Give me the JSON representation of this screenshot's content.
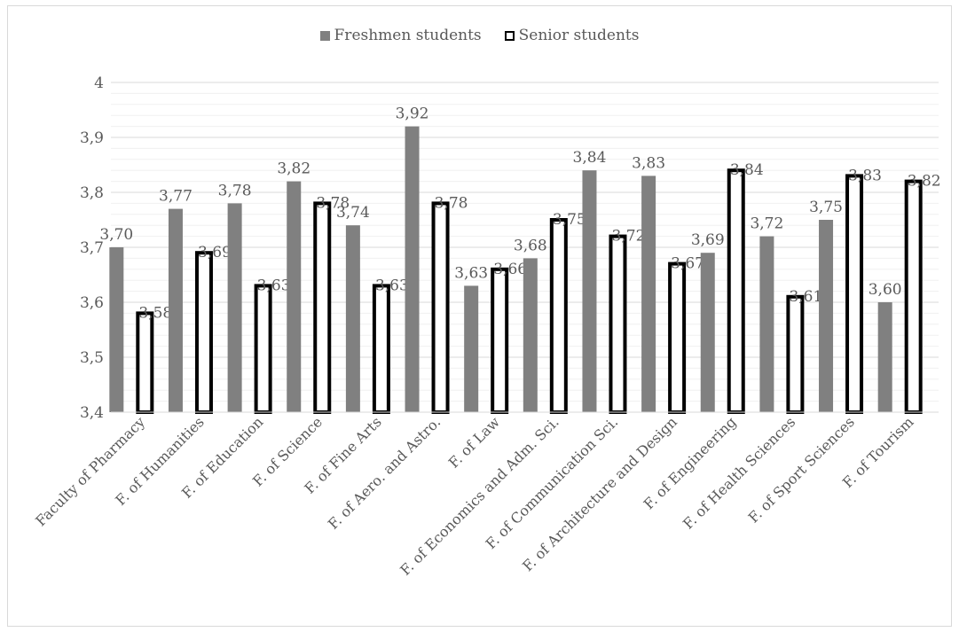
{
  "chart_data": {
    "type": "bar",
    "categories": [
      "Faculty of Pharmacy",
      "F. of Humanities",
      "F. of Education",
      "F. of Science",
      "F. of Fine Arts",
      "F. of Aero. and Astro.",
      "F. of Law",
      "F. of Economics and Adm. Sci.",
      "F. of Communication Sci.",
      "F. of Architecture and Design",
      "F. of Engineering",
      "F. of Health Sciences",
      "F. of Sport Sciences",
      "F. of Tourism"
    ],
    "series": [
      {
        "name": "Freshmen students",
        "color": "#808080",
        "values": [
          3.7,
          3.77,
          3.78,
          3.82,
          3.74,
          3.92,
          3.63,
          3.68,
          3.84,
          3.83,
          3.69,
          3.72,
          3.75,
          3.6
        ],
        "labels": [
          "3,70",
          "3,77",
          "3,78",
          "3,82",
          "3,74",
          "3,92",
          "3,63",
          "3,68",
          "3,84",
          "3,83",
          "3,69",
          "3,72",
          "3,75",
          "3,60"
        ]
      },
      {
        "name": "Senior students",
        "color": "#ffffff",
        "values": [
          3.58,
          3.69,
          3.63,
          3.78,
          3.63,
          3.78,
          3.66,
          3.75,
          3.72,
          3.67,
          3.84,
          3.61,
          3.83,
          3.82
        ],
        "labels": [
          "3,58",
          "3,69",
          "3,63",
          "3,78",
          "3,63",
          "3,78",
          "3,66",
          "3,75",
          "3,72",
          "3,67",
          "3,84",
          "3,61",
          "3,83",
          "3,82"
        ]
      }
    ],
    "ylim": [
      3.4,
      4.0
    ],
    "yticks": [
      3.4,
      3.5,
      3.6,
      3.7,
      3.8,
      3.9,
      4.0
    ],
    "ytick_labels": [
      "3,4",
      "3,5",
      "3,6",
      "3,7",
      "3,8",
      "3,9",
      "4"
    ],
    "grid": true,
    "legend_position": "top-center",
    "title": "",
    "xlabel": "",
    "ylabel": ""
  }
}
